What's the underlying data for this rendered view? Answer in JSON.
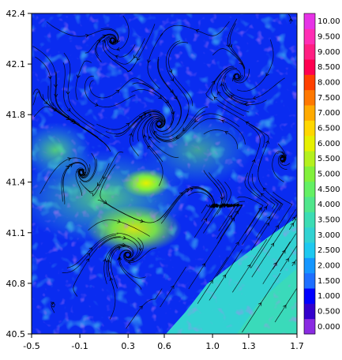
{
  "chart_data": {
    "type": "heatmap",
    "title": "",
    "xlabel": "",
    "ylabel": "",
    "xlim": [
      -0.5,
      1.7
    ],
    "ylim": [
      40.5,
      42.4
    ],
    "x_ticks": [
      "-0.5",
      "-0.1",
      "0.3",
      "0.6",
      "1.0",
      "1.3",
      "1.7"
    ],
    "x_tick_values": [
      -0.5,
      -0.1,
      0.3,
      0.6,
      1.0,
      1.3,
      1.7
    ],
    "y_ticks": [
      "40.5",
      "40.8",
      "41.1",
      "41.4",
      "41.8",
      "42.1",
      "42.4"
    ],
    "y_tick_values": [
      40.5,
      40.8,
      41.1,
      41.4,
      41.8,
      42.1,
      42.4
    ],
    "overlay": "streamlines",
    "colorbar": {
      "levels": [
        "0.000",
        "0.500",
        "1.000",
        "1.500",
        "2.000",
        "2.500",
        "3.000",
        "3.500",
        "4.000",
        "4.500",
        "5.000",
        "5.500",
        "6.000",
        "6.500",
        "7.000",
        "7.500",
        "8.000",
        "8.500",
        "9.000",
        "9.500",
        "10.00"
      ],
      "colors": [
        "#8a2be2",
        "#3300cc",
        "#0000ff",
        "#1e6fff",
        "#1496ff",
        "#1ec8f0",
        "#32d2d2",
        "#3cdcb4",
        "#50e68c",
        "#64f064",
        "#82f03c",
        "#b4f01e",
        "#e6f000",
        "#ffd700",
        "#ffaa00",
        "#ff7800",
        "#ff4000",
        "#ff0050",
        "#ff1e82",
        "#ff2db4",
        "#e632e6"
      ]
    }
  }
}
